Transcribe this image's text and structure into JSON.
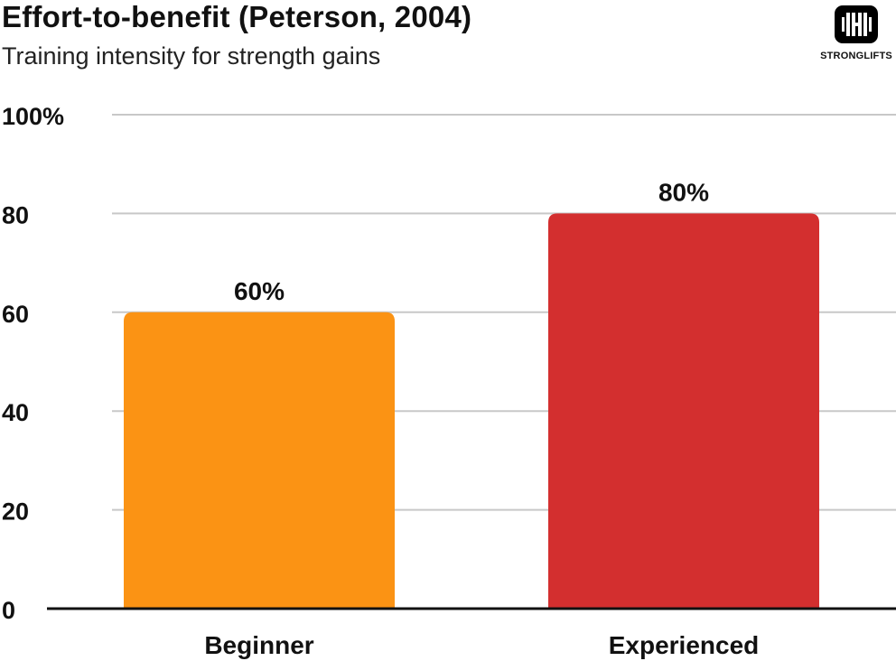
{
  "header": {
    "title": "Effort-to-benefit (Peterson, 2004)",
    "subtitle": "Training intensity for strength gains"
  },
  "logo": {
    "text": "STRONGLIFTS",
    "icon": "barbell-icon"
  },
  "colors": {
    "gridline": "#c8c8c8",
    "baseline": "#111111",
    "beginner": "#fb9314",
    "experienced": "#d32f2f"
  },
  "chart_data": {
    "type": "bar",
    "categories": [
      "Beginner",
      "Experienced"
    ],
    "values": [
      60,
      80
    ],
    "data_labels": [
      "60%",
      "80%"
    ],
    "bar_colors": [
      "#fb9314",
      "#d32f2f"
    ],
    "title": "Effort-to-benefit (Peterson, 2004)",
    "subtitle": "Training intensity for strength gains",
    "xlabel": "",
    "ylabel": "",
    "ylim": [
      0,
      100
    ],
    "yticks": [
      0,
      20,
      40,
      60,
      80,
      100
    ],
    "ytick_labels": [
      "0",
      "20",
      "40",
      "60",
      "80",
      "100%"
    ],
    "grid": true,
    "legend": "none"
  }
}
